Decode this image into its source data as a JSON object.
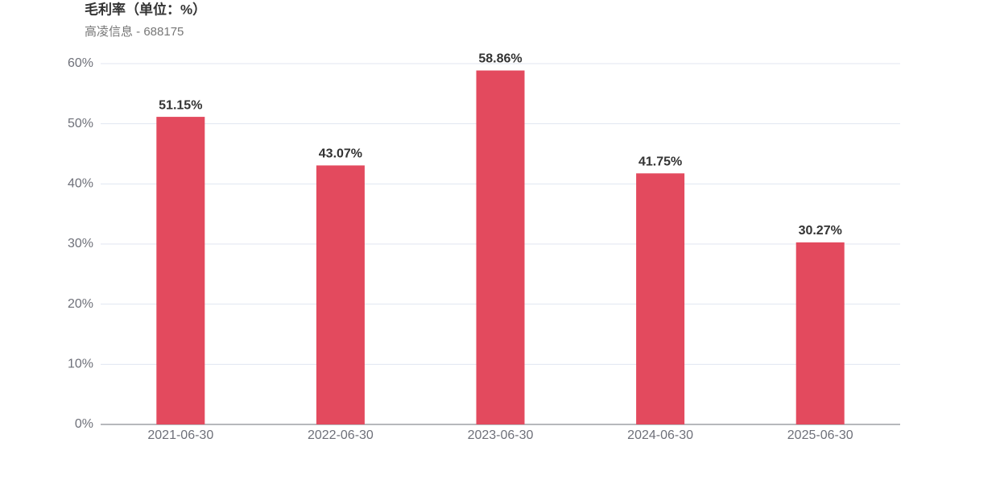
{
  "chart_data": {
    "type": "bar",
    "title": "毛利率（单位：%）",
    "subtitle": "高凌信息 - 688175",
    "categories": [
      "2021-06-30",
      "2022-06-30",
      "2023-06-30",
      "2024-06-30",
      "2025-06-30"
    ],
    "values": [
      51.15,
      43.07,
      58.86,
      41.75,
      30.27
    ],
    "value_labels": [
      "51.15%",
      "43.07%",
      "58.86%",
      "41.75%",
      "30.27%"
    ],
    "color": "#e34a5e",
    "ylim": [
      0,
      60
    ],
    "yticks": [
      {
        "value": 0,
        "label": "0%"
      },
      {
        "value": 10,
        "label": "10%"
      },
      {
        "value": 20,
        "label": "20%"
      },
      {
        "value": 30,
        "label": "30%"
      },
      {
        "value": 40,
        "label": "40%"
      },
      {
        "value": 50,
        "label": "50%"
      },
      {
        "value": 60,
        "label": "60%"
      }
    ],
    "grid": true
  }
}
